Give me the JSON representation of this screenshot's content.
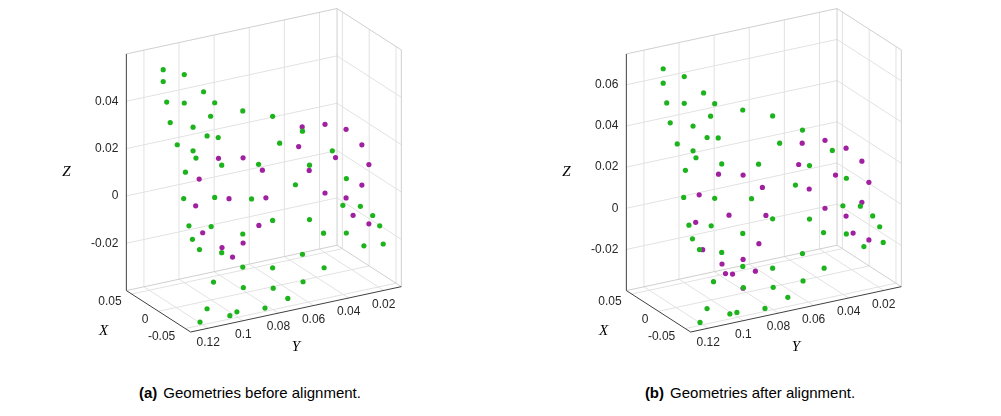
{
  "chart_data": [
    {
      "type": "scatter",
      "caption_label": "(a)",
      "caption": "Geometries before alignment.",
      "xlabel": "X",
      "ylabel": "Y",
      "zlabel": "Z",
      "xlim": [
        -0.06,
        0.06
      ],
      "ylim": [
        0.01,
        0.13
      ],
      "zlim": [
        -0.04,
        0.06
      ],
      "xticks": [
        -0.05,
        0,
        0.05
      ],
      "yticks": [
        0.02,
        0.04,
        0.06,
        0.08,
        0.1,
        0.12
      ],
      "zticks": [
        -0.02,
        0,
        0.02,
        0.04
      ],
      "grid": true,
      "series": [
        {
          "color": "#1db31d",
          "marker": ".",
          "x": [
            0.024,
            0.024,
            0.024,
            0.024,
            0.024,
            0.024,
            0.024,
            0.024,
            0.024,
            0.024,
            0.024,
            0.024,
            0,
            0,
            0,
            0,
            0,
            0,
            0,
            0,
            0,
            0,
            0,
            0,
            0,
            0,
            0,
            0,
            0,
            0,
            0,
            0,
            0,
            0,
            0,
            0,
            0.012,
            0.012,
            0.012,
            0.012,
            0.012,
            0.012,
            -0.024,
            -0.024,
            -0.024,
            -0.024,
            -0.024,
            -0.048,
            -0.048,
            -0.048,
            -0.048,
            -0.048,
            -0.048,
            -0.036,
            -0.036,
            -0.036,
            -0.036,
            -0.036,
            -0.036
          ],
          "y": [
            0.12,
            0.108,
            0.097,
            0.093,
            0.095,
            0.103,
            0.112,
            0.116,
            0.118,
            0.12,
            0.108,
            0.103,
            0.098,
            0.082,
            0.065,
            0.048,
            0.031,
            0.023,
            0.025,
            0.036,
            0.048,
            0.065,
            0.082,
            0.094,
            0.1,
            0.098,
            0.094,
            0.096,
            0.073,
            0.052,
            0.065,
            0.077,
            0.044,
            0.061,
            0.082,
            0.044,
            0.111,
            0.112,
            0.109,
            0.103,
            0.105,
            0.107,
            0.106,
            0.089,
            0.072,
            0.055,
            0.043,
            0.117,
            0.1,
            0.084,
            0.121,
            0.104,
            0.071,
            0.034,
            0.026,
            0.015,
            0.013,
            0.024,
            0.019
          ],
          "z": [
            0.057,
            0.053,
            0.044,
            0.033,
            0.025,
            0.02,
            0.024,
            0.034,
            0.043,
            0.052,
            0.041,
            0.03,
            0.043,
            0.037,
            0.032,
            0.023,
            0.012,
            -0.001,
            -0.012,
            -0.022,
            -0.029,
            -0.032,
            -0.029,
            -0.021,
            -0.009,
            0.003,
            0.016,
            0.028,
            0.013,
            0.001,
            -0.012,
            -0.001,
            0.008,
            0.02,
            -0.015,
            -0.015,
            0.014,
            0.003,
            -0.009,
            -0.02,
            0.019,
            -0.015,
            -0.028,
            -0.033,
            -0.036,
            -0.036,
            -0.032,
            -0.034,
            -0.038,
            -0.039,
            -0.039,
            -0.039,
            -0.037,
            -0.017,
            -0.007,
            -0.017,
            -0.025,
            -0.024,
            -0.012
          ]
        },
        {
          "color": "#a020a0",
          "marker": ".",
          "x": [
            0.006,
            0.006,
            0.006,
            0.006,
            0.006,
            0.006,
            0.006,
            0.006,
            0.006,
            0.006,
            0.006,
            0.006,
            -0.006,
            -0.006,
            -0.006,
            -0.006,
            -0.006,
            -0.006,
            -0.006,
            -0.006,
            -0.006,
            -0.006,
            -0.006,
            -0.006,
            -0.006
          ],
          "y": [
            0.105,
            0.094,
            0.08,
            0.069,
            0.067,
            0.071,
            0.08,
            0.092,
            0.103,
            0.107,
            0.086,
            0.088,
            0.05,
            0.037,
            0.025,
            0.016,
            0.012,
            0.016,
            0.025,
            0.037,
            0.046,
            0.052,
            0.021,
            0.012,
            0.031
          ],
          "z": [
            0.011,
            0.018,
            0.016,
            0.009,
            -0.003,
            -0.014,
            -0.02,
            -0.02,
            -0.012,
            0,
            -0.025,
            0,
            0.026,
            0.025,
            0.021,
            0.013,
            0.004,
            -0.004,
            -0.008,
            -0.004,
            0.007,
            0.018,
            -0.016,
            -0.021,
            0.01
          ]
        }
      ]
    },
    {
      "type": "scatter",
      "caption_label": "(b)",
      "caption": "Geometries after alignment.",
      "xlabel": "X",
      "ylabel": "Y",
      "zlabel": "Z",
      "xlim": [
        -0.06,
        0.06
      ],
      "ylim": [
        0.01,
        0.13
      ],
      "zlim": [
        -0.04,
        0.075
      ],
      "xticks": [
        -0.05,
        0,
        0.05
      ],
      "yticks": [
        0.02,
        0.04,
        0.06,
        0.08,
        0.1,
        0.12
      ],
      "zticks": [
        -0.02,
        0,
        0.02,
        0.04,
        0.06
      ],
      "grid": true,
      "series": [
        {
          "color": "#1db31d",
          "marker": ".",
          "x": [
            0.024,
            0.024,
            0.024,
            0.024,
            0.024,
            0.024,
            0.024,
            0.024,
            0.024,
            0.024,
            0.024,
            0.024,
            0,
            0,
            0,
            0,
            0,
            0,
            0,
            0,
            0,
            0,
            0,
            0,
            0,
            0,
            0,
            0,
            0,
            0,
            0,
            0,
            0,
            0,
            0,
            0,
            0.012,
            0.012,
            0.012,
            0.012,
            0.012,
            0.012,
            -0.024,
            -0.024,
            -0.024,
            -0.024,
            -0.024,
            -0.048,
            -0.048,
            -0.048,
            -0.048,
            -0.048,
            -0.048,
            -0.036,
            -0.036,
            -0.036,
            -0.036,
            -0.036,
            -0.036
          ],
          "y": [
            0.12,
            0.108,
            0.097,
            0.093,
            0.095,
            0.103,
            0.112,
            0.116,
            0.118,
            0.12,
            0.108,
            0.103,
            0.098,
            0.082,
            0.065,
            0.048,
            0.031,
            0.023,
            0.025,
            0.036,
            0.048,
            0.065,
            0.082,
            0.094,
            0.1,
            0.098,
            0.094,
            0.096,
            0.073,
            0.052,
            0.065,
            0.077,
            0.044,
            0.061,
            0.082,
            0.044,
            0.111,
            0.112,
            0.109,
            0.103,
            0.105,
            0.107,
            0.106,
            0.089,
            0.072,
            0.055,
            0.043,
            0.117,
            0.1,
            0.084,
            0.121,
            0.104,
            0.071,
            0.034,
            0.026,
            0.015,
            0.013,
            0.024,
            0.019
          ],
          "z": [
            0.072,
            0.066,
            0.056,
            0.044,
            0.034,
            0.029,
            0.034,
            0.045,
            0.055,
            0.065,
            0.053,
            0.041,
            0.055,
            0.049,
            0.043,
            0.033,
            0.02,
            0.005,
            -0.008,
            -0.019,
            -0.027,
            -0.031,
            -0.027,
            -0.018,
            -0.004,
            0.009,
            0.025,
            0.038,
            0.021,
            0.007,
            -0.007,
            0.005,
            0.015,
            0.029,
            -0.011,
            -0.011,
            0.023,
            0.01,
            -0.004,
            -0.017,
            0.028,
            -0.011,
            -0.026,
            -0.032,
            -0.035,
            -0.035,
            -0.031,
            -0.033,
            -0.038,
            -0.039,
            -0.039,
            -0.038,
            -0.036,
            -0.014,
            -0.002,
            -0.014,
            -0.022,
            -0.022,
            -0.008
          ]
        },
        {
          "color": "#a020a0",
          "marker": ".",
          "x": [
            0.006,
            0.006,
            0.006,
            0.006,
            0.006,
            0.006,
            0.006,
            0.006,
            0.006,
            0.006,
            0.006,
            0.006,
            0.006,
            0.006,
            0.006,
            -0.006,
            -0.006,
            -0.006,
            -0.006,
            -0.006,
            -0.006,
            -0.006,
            -0.006,
            -0.006,
            -0.006,
            -0.006,
            -0.006,
            -0.006
          ],
          "y": [
            0.105,
            0.094,
            0.08,
            0.069,
            0.067,
            0.071,
            0.08,
            0.092,
            0.103,
            0.107,
            0.086,
            0.088,
            0.09,
            0.08,
            0.073,
            0.05,
            0.037,
            0.025,
            0.016,
            0.012,
            0.016,
            0.025,
            0.037,
            0.046,
            0.052,
            0.021,
            0.012,
            0.031
          ],
          "z": [
            0.011,
            0.019,
            0.016,
            0.008,
            -0.006,
            -0.019,
            -0.025,
            -0.025,
            -0.016,
            -0.002,
            -0.031,
            -0.002,
            -0.03,
            -0.039,
            -0.032,
            0.028,
            0.027,
            0.021,
            0.013,
            0.002,
            -0.007,
            -0.012,
            -0.006,
            0.005,
            0.018,
            -0.021,
            -0.026,
            0.009
          ]
        }
      ]
    }
  ]
}
